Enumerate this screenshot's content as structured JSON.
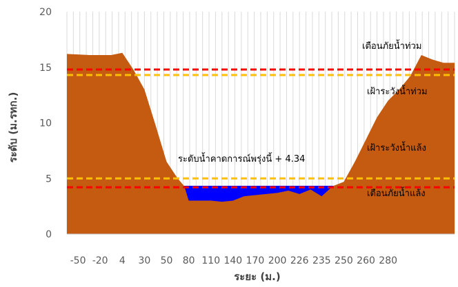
{
  "chart_data": {
    "type": "area",
    "title": "",
    "xlabel": "ระยะ (ม.)",
    "ylabel": "ระดับ (ม.รทก.)",
    "ylim": [
      0,
      20
    ],
    "yticks": [
      0,
      5,
      10,
      15,
      20
    ],
    "x_tick_labels": [
      "-50",
      "-20",
      "4",
      "30",
      "50",
      "80",
      "110",
      "140",
      "170",
      "200",
      "226",
      "235",
      "250",
      "260",
      "280"
    ],
    "grid": "vertical",
    "colors": {
      "ground": "#c55a11",
      "water": "#0000ff",
      "flood_warning": "#ff0000",
      "flood_watch": "#ffc000",
      "drought_watch": "#ffc000",
      "drought_warning": "#ff0000",
      "grid": "#d9d9d9"
    },
    "series": [
      {
        "key": "ground",
        "points": [
          [
            0,
            16.2
          ],
          [
            1,
            16.1
          ],
          [
            2,
            16.1
          ],
          [
            2.5,
            16.3
          ],
          [
            3,
            14.8
          ],
          [
            3.5,
            13.0
          ],
          [
            4,
            9.8
          ],
          [
            4.5,
            6.5
          ],
          [
            5,
            5.0
          ],
          [
            5.3,
            4.3
          ],
          [
            5.5,
            3.0
          ],
          [
            6,
            3.0
          ],
          [
            6.5,
            3.0
          ],
          [
            7,
            2.9
          ],
          [
            7.5,
            3.0
          ],
          [
            8,
            3.4
          ],
          [
            8.5,
            3.5
          ],
          [
            9,
            3.6
          ],
          [
            9.5,
            3.7
          ],
          [
            10,
            3.9
          ],
          [
            10.5,
            3.6
          ],
          [
            11,
            4.0
          ],
          [
            11.5,
            3.4
          ],
          [
            12,
            4.3
          ],
          [
            12.5,
            4.7
          ],
          [
            13,
            6.5
          ],
          [
            13.5,
            8.5
          ],
          [
            14,
            10.5
          ],
          [
            14.5,
            12.0
          ],
          [
            15,
            13.0
          ],
          [
            15.5,
            14.2
          ],
          [
            16,
            16.1
          ],
          [
            16.5,
            15.7
          ],
          [
            17,
            15.4
          ],
          [
            17.5,
            15.4
          ]
        ]
      },
      {
        "key": "water",
        "level": 4.34
      }
    ],
    "thresholds": [
      {
        "key": "flood_warning",
        "value": 14.8,
        "label": "เตือนภัยน้ำท่วม"
      },
      {
        "key": "flood_watch",
        "value": 14.3,
        "label": "เฝ้าระวังน้ำท่วม"
      },
      {
        "key": "drought_watch",
        "value": 5.0,
        "label": "เฝ้าระวังน้ำแล้ง"
      },
      {
        "key": "drought_warning",
        "value": 4.2,
        "label": "เตือนภัยน้ำแล้ง"
      }
    ],
    "annotation": "ระดับน้ำคาดการณ์พรุ่งนี้ + 4.34"
  }
}
